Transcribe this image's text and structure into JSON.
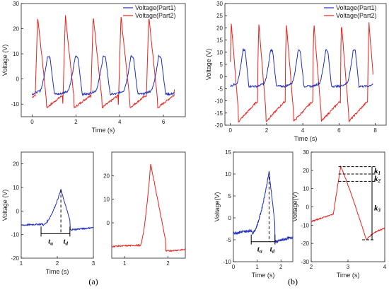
{
  "colors": {
    "part1": "#1f2fbf",
    "part2": "#e8221d",
    "axis": "#222222",
    "dash": "#000000"
  },
  "figure": {
    "caption_a": "(a)",
    "caption_b": "(b)"
  },
  "chart_data": [
    {
      "id": "a-top",
      "type": "line",
      "xlabel": "Time (s)",
      "ylabel": "Voltage (V)",
      "xlim": [
        -0.5,
        7
      ],
      "ylim": [
        -15,
        30
      ],
      "xticks": [
        "0",
        "2",
        "4",
        "6"
      ],
      "yticks": [
        "-10",
        "0",
        "10",
        "20",
        "30"
      ],
      "legend": {
        "position": "top-right",
        "entries": [
          "Voltage(Part1)",
          "Voltage(Part2)"
        ]
      },
      "series": [
        {
          "name": "Voltage(Part1)",
          "period": 1.27,
          "start": 0,
          "end": 6.5,
          "baseline": -6,
          "peak": 9,
          "peak_offset": 0.7
        },
        {
          "name": "Voltage(Part2)",
          "period": 1.27,
          "start": 0,
          "end": 6.5,
          "baseline": -10,
          "peak": 25,
          "peak_offset": 0.25
        }
      ]
    },
    {
      "id": "b-top",
      "type": "line",
      "xlabel": "Time (s)",
      "ylabel": "Voltage (V)",
      "xlim": [
        -0.3,
        8.6
      ],
      "ylim": [
        -20,
        30
      ],
      "xticks": [
        "0",
        "2",
        "4",
        "6",
        "8"
      ],
      "yticks": [
        "-20",
        "-15",
        "-10",
        "-5",
        "0",
        "5",
        "10",
        "15",
        "20",
        "25",
        "30"
      ],
      "legend": {
        "position": "top-right",
        "entries": [
          "Voltage(Part1)",
          "Voltage(Part2)"
        ]
      },
      "series": [
        {
          "name": "Voltage(Part1)",
          "period": 1.52,
          "start": 0,
          "end": 7.9,
          "baseline": -4,
          "peak": 11,
          "peak_offset": 0.7
        },
        {
          "name": "Voltage(Part2)",
          "period": 1.52,
          "start": 0,
          "end": 7.9,
          "baseline": -17,
          "peak": 22,
          "peak_offset": 0.05
        }
      ]
    },
    {
      "id": "a-bl",
      "type": "line",
      "xlabel": "Time (s)",
      "ylabel": "Voltage (V)",
      "xlim": [
        1,
        3
      ],
      "ylim": [
        -20,
        25
      ],
      "xticks": [
        "1",
        "2",
        "3"
      ],
      "yticks": [
        "-20",
        "-10",
        "0",
        "10",
        "20"
      ],
      "series": [
        {
          "name": "",
          "pulse": {
            "start": 1.0,
            "end": 3.0,
            "baseline": -6,
            "peak": 9,
            "peak_at": 2.1,
            "rise": 0.5,
            "fall": 0.25
          }
        }
      ],
      "annotations": {
        "t_u": "t",
        "t_u_sub": "u",
        "t_d": "t",
        "t_d_sub": "d"
      }
    },
    {
      "id": "a-br",
      "type": "line",
      "xlim": [
        0.7,
        2.4
      ],
      "ylim": [
        -15,
        30
      ],
      "xticks": [
        "1",
        "2"
      ],
      "yticks": [
        "0",
        "10",
        "20"
      ],
      "series": [
        {
          "name": "",
          "pulse": {
            "start": 0.7,
            "end": 2.4,
            "baseline": -10,
            "peak": 25,
            "peak_at": 1.6,
            "rise": 0.25,
            "fall": 0.35
          }
        }
      ]
    },
    {
      "id": "b-bl",
      "type": "line",
      "xlabel": "Time (s)",
      "ylabel": "Voltage(V)",
      "xlim": [
        0,
        2.5
      ],
      "ylim": [
        -10,
        15
      ],
      "xticks": [
        "0",
        "1",
        "2"
      ],
      "yticks": [
        "-10",
        "-5",
        "0",
        "5",
        "10",
        "15"
      ],
      "series": [
        {
          "name": "",
          "pulse": {
            "start": 0.0,
            "end": 2.5,
            "baseline": -3.5,
            "peak": 10.5,
            "peak_at": 1.5,
            "rise": 0.7,
            "fall": 0.25
          }
        }
      ],
      "annotations": {
        "t_u": "t",
        "t_u_sub": "u",
        "t_d": "t",
        "t_d_sub": "d"
      }
    },
    {
      "id": "b-br",
      "type": "line",
      "xlabel": "Time (s)",
      "ylabel": "Voltage(V)",
      "xlim": [
        2,
        4
      ],
      "ylim": [
        -30,
        30
      ],
      "xticks": [
        "2",
        "3",
        "4"
      ],
      "yticks": [
        "-30",
        "-20",
        "-10",
        "0",
        "10",
        "20",
        "30"
      ],
      "series": [
        {
          "name": "",
          "pulse": {
            "start": 2.0,
            "end": 4.0,
            "baseline": -8,
            "peak": 22,
            "peak_at": 2.8,
            "trough": -18,
            "trough_at": 3.5
          }
        }
      ],
      "annotations": {
        "k1": "k",
        "k1_sub": "1",
        "k2": "k",
        "k2_sub": "2",
        "k3": "k",
        "k3_sub": "3"
      }
    }
  ]
}
